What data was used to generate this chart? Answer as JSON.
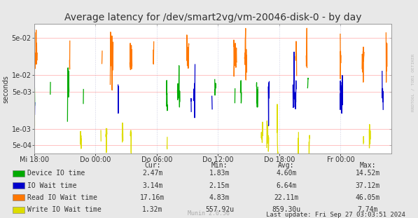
{
  "title": "Average latency for /dev/smart2vg/vm-20046-disk-0 - by day",
  "ylabel": "seconds",
  "bg_color": "#e8e8e8",
  "plot_bg_color": "#ffffff",
  "grid_color": "#aaaacc",
  "hline_color": "#ffaaaa",
  "border_color": "#999999",
  "x_labels": [
    "Mi 18:00",
    "Do 00:00",
    "Do 06:00",
    "Do 12:00",
    "Do 18:00",
    "Fr 00:00"
  ],
  "x_ticks_norm": [
    0.0,
    0.1714,
    0.3429,
    0.5143,
    0.6857,
    0.8571
  ],
  "y_min": 0.00035,
  "y_max": 0.09,
  "ytick_vals": [
    0.0005,
    0.001,
    0.005,
    0.01,
    0.05
  ],
  "ytick_labels": [
    "5e-04",
    "1e-03",
    "5e-03",
    "1e-02",
    "5e-02"
  ],
  "colors": {
    "green": "#00aa00",
    "blue": "#0000cc",
    "orange": "#ff7700",
    "yellow": "#dddd00"
  },
  "legend_items": [
    {
      "label": "Device IO time",
      "color_key": "green"
    },
    {
      "label": "IO Wait time",
      "color_key": "blue"
    },
    {
      "label": "Read IO Wait time",
      "color_key": "orange"
    },
    {
      "label": "Write IO Wait time",
      "color_key": "yellow"
    }
  ],
  "legend_col_labels": [
    "Cur:",
    "Min:",
    "Avg:",
    "Max:"
  ],
  "legend_data": [
    [
      "2.47m",
      "1.83m",
      "4.60m",
      "14.52m"
    ],
    [
      "3.14m",
      "2.15m",
      "6.64m",
      "37.12m"
    ],
    [
      "17.16m",
      "4.83m",
      "22.11m",
      "46.05m"
    ],
    [
      "1.32m",
      "557.92u",
      "859.30u",
      "7.74m"
    ]
  ],
  "last_update": "Last update: Fri Sep 27 03:03:51 2024",
  "munin_label": "Munin 2.0.56",
  "rrdtool_label": "RRDTOOL / TOBI OETIKER",
  "title_fontsize": 10,
  "axis_fontsize": 7,
  "legend_fontsize": 7
}
